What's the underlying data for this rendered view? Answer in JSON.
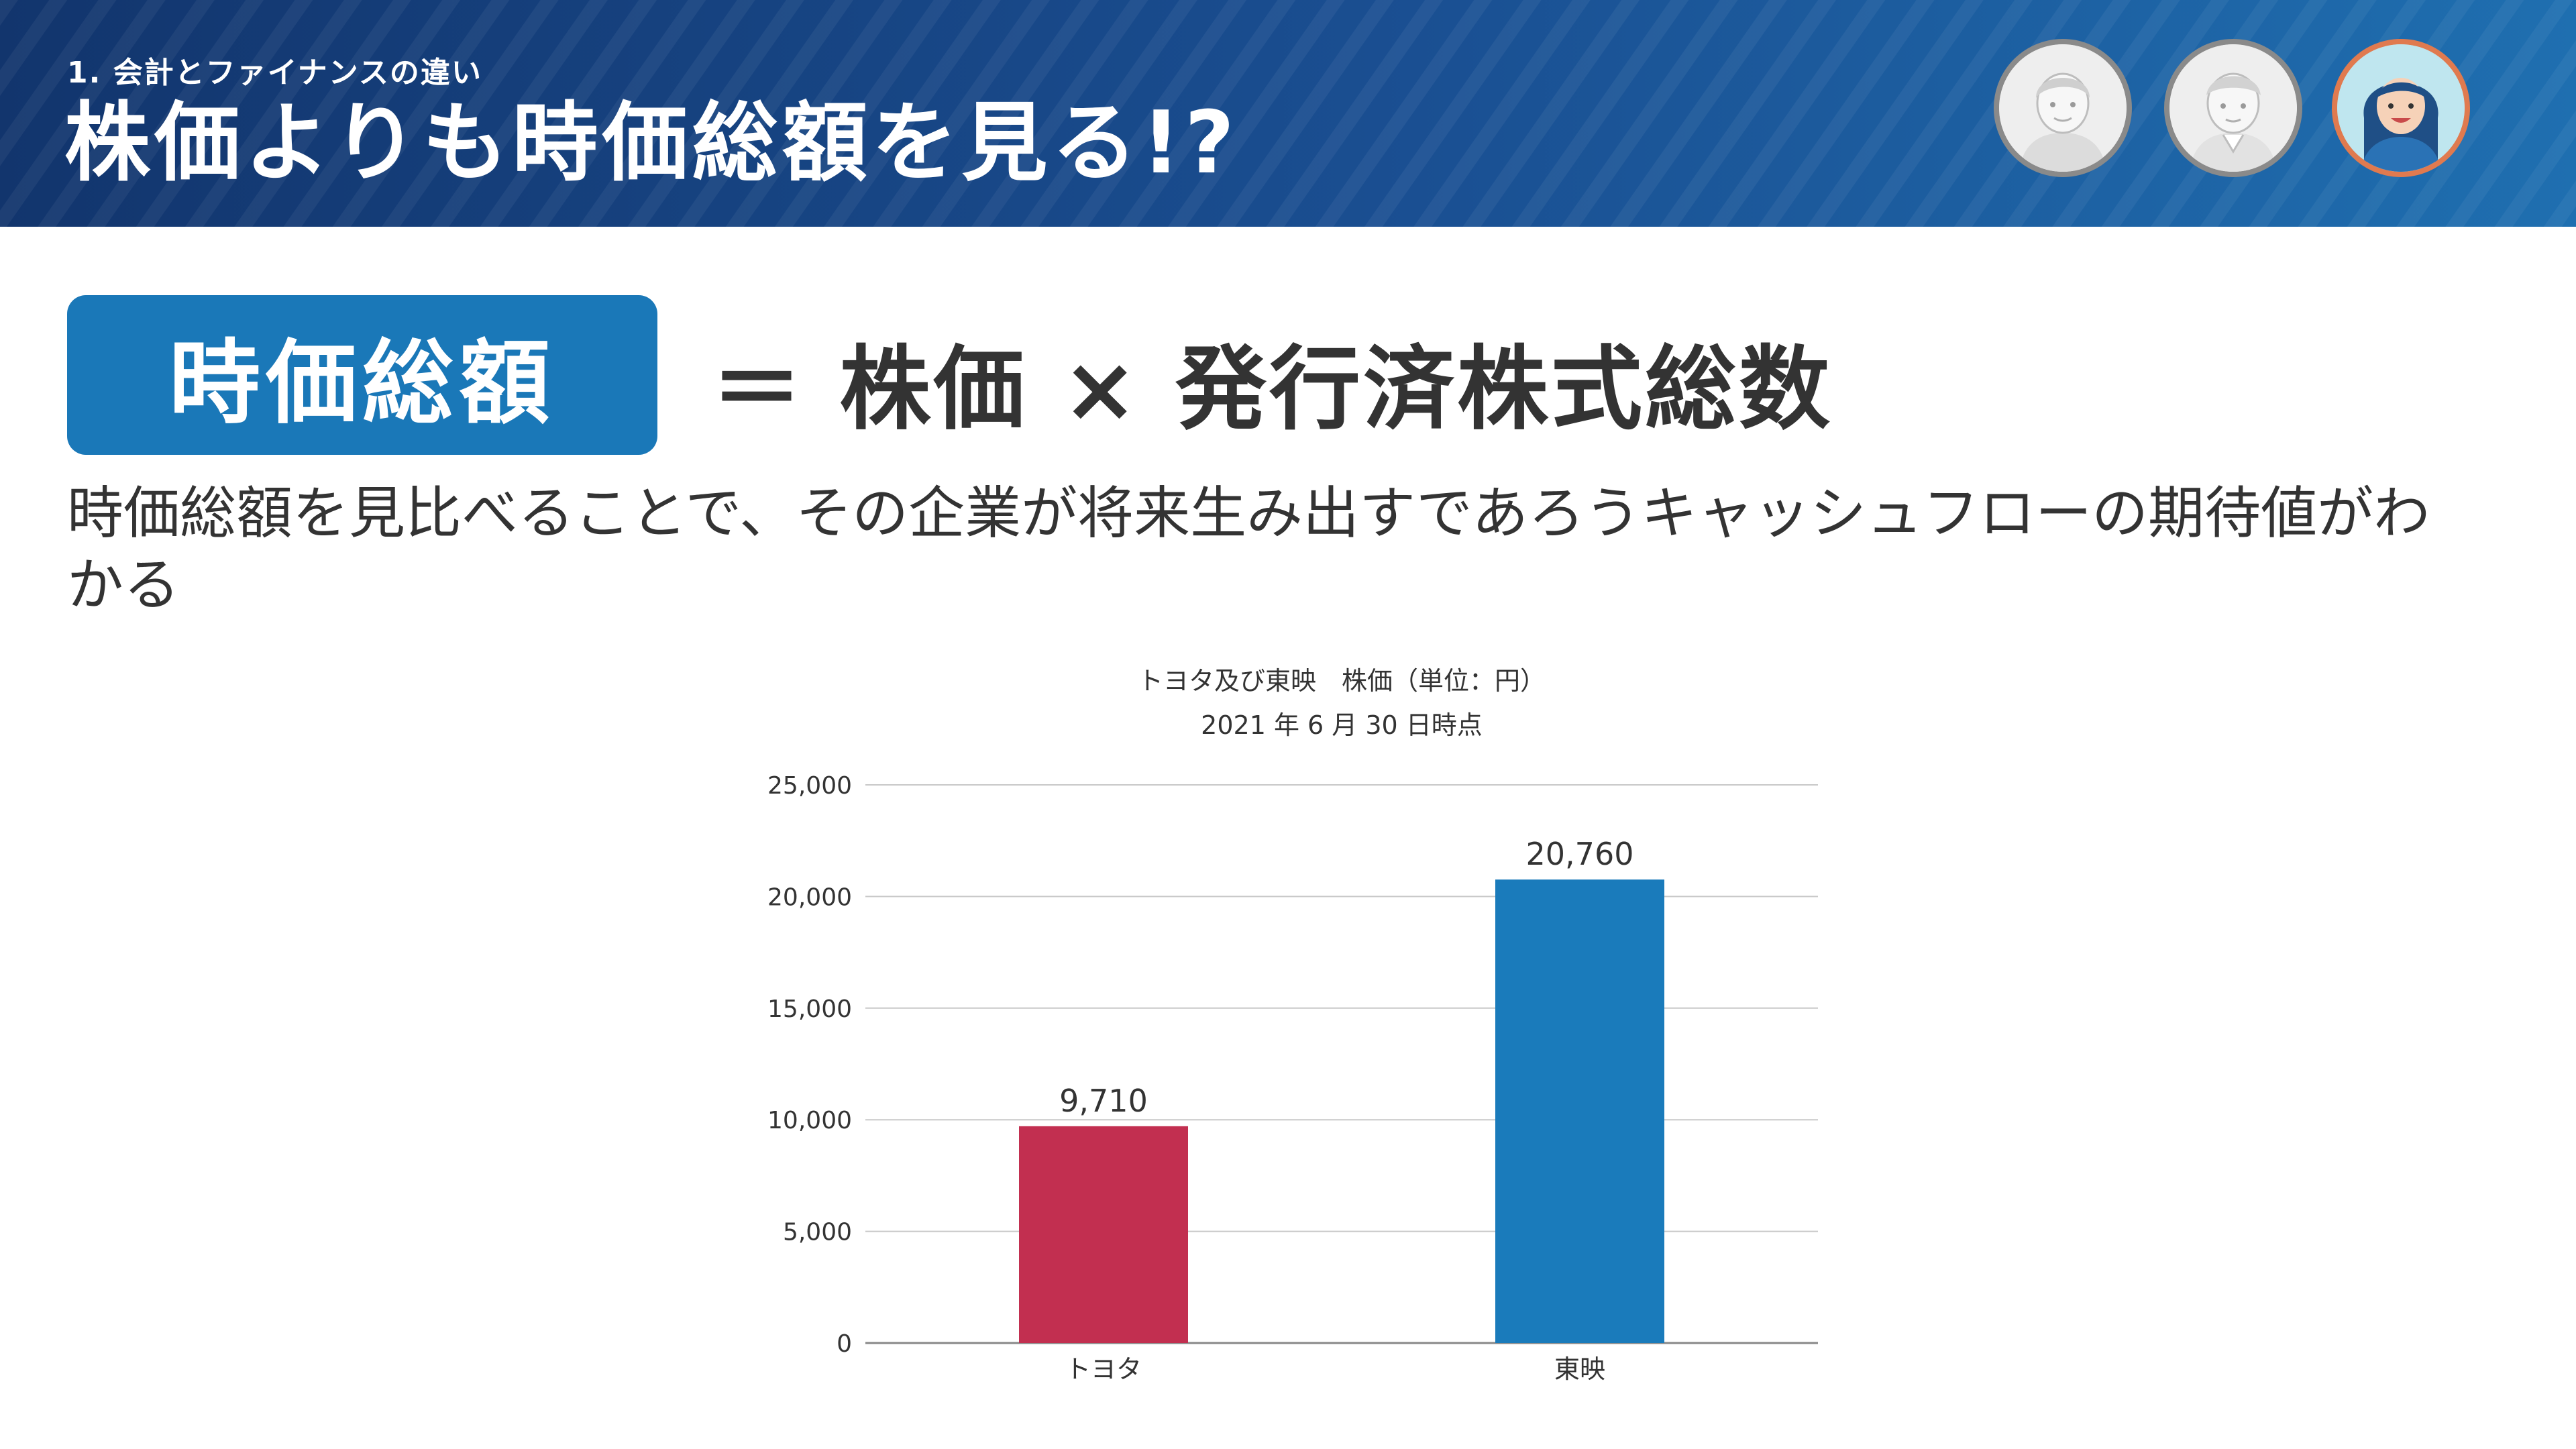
{
  "header": {
    "section_label": "1. 会計とファイナンスの違い",
    "title": "株価よりも時価総額を見る!?"
  },
  "avatars": [
    {
      "icon": "man-avatar-icon"
    },
    {
      "icon": "man-avatar-icon"
    },
    {
      "icon": "woman-avatar-icon"
    }
  ],
  "colors": {
    "header_start": "#12356d",
    "header_end": "#1f6fb0",
    "term_box": "#1a78b8",
    "toyota_bar": "#c22f50",
    "toei_bar": "#1a7bbb"
  },
  "formula": {
    "term": "時価総額",
    "expression": "＝ 株価 × 発行済株式総数"
  },
  "description": "時価総額を見比べることで、その企業が将来生み出すであろうキャッシュフローの期待値がわかる",
  "chart_data": {
    "type": "bar",
    "title": "トヨタ及び東映　株価（単位：円）",
    "subtitle": "2021 年 6 月 30 日時点",
    "categories": [
      "トヨタ",
      "東映"
    ],
    "values": [
      9710,
      20760
    ],
    "value_labels": [
      "9,710",
      "20,760"
    ],
    "bar_colors": [
      "#c22f50",
      "#1a7bbb"
    ],
    "ylim": [
      0,
      25000
    ],
    "yticks": [
      0,
      5000,
      10000,
      15000,
      20000,
      25000
    ],
    "ytick_labels": [
      "0",
      "5,000",
      "10,000",
      "15,000",
      "20,000",
      "25,000"
    ],
    "grid": true,
    "legend": "none",
    "xlabel": "",
    "ylabel": ""
  }
}
